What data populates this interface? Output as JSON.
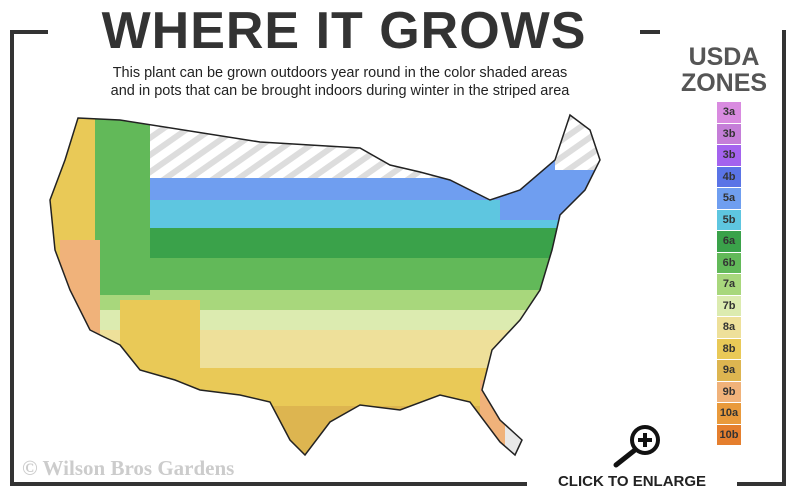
{
  "header": {
    "title": "WHERE IT GROWS",
    "subtitle_line1": "This plant can be grown outdoors year round in the color shaded areas",
    "subtitle_line2": "and in pots that can be brought indoors during winter in the striped area"
  },
  "legend": {
    "title_line1": "USDA",
    "title_line2": "ZONES",
    "zones": [
      {
        "label": "3a",
        "color": "#d98be0"
      },
      {
        "label": "3b",
        "color": "#c57ed8"
      },
      {
        "label": "3b",
        "color": "#a463ee"
      },
      {
        "label": "4b",
        "color": "#5a74e6"
      },
      {
        "label": "5a",
        "color": "#6f9ef0"
      },
      {
        "label": "5b",
        "color": "#5ec6e0"
      },
      {
        "label": "6a",
        "color": "#3aa24a"
      },
      {
        "label": "6b",
        "color": "#62b959"
      },
      {
        "label": "7a",
        "color": "#a8d77c"
      },
      {
        "label": "7b",
        "color": "#dcebb0"
      },
      {
        "label": "8a",
        "color": "#eee09a"
      },
      {
        "label": "8b",
        "color": "#e9c957"
      },
      {
        "label": "9a",
        "color": "#ddb550"
      },
      {
        "label": "9b",
        "color": "#f0b27a"
      },
      {
        "label": "10a",
        "color": "#e99a3c"
      },
      {
        "label": "10b",
        "color": "#e57f2e"
      }
    ]
  },
  "footer": {
    "copyright": "© Wilson Bros Gardens",
    "enlarge_label": "CLICK TO ENLARGE"
  },
  "icons": {
    "enlarge": "magnifier-plus-icon"
  }
}
